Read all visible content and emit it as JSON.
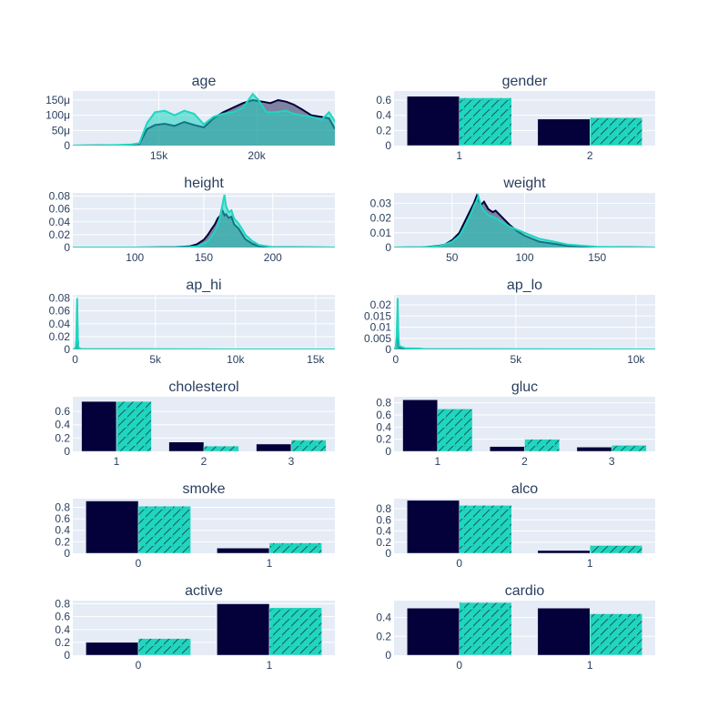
{
  "colors": {
    "plot_bg": "#E5ECF6",
    "grid": "#ffffff",
    "text": "#2a3f5f",
    "series_a": "#03003A",
    "series_b": "#1FD6C0"
  },
  "chart_data": [
    {
      "type": "area",
      "title": "age",
      "xlim": [
        10600,
        24000
      ],
      "ylim": [
        0,
        0.00018
      ],
      "xticks": [
        {
          "v": 15000,
          "label": "15k"
        },
        {
          "v": 20000,
          "label": "20k"
        }
      ],
      "yticks": [
        {
          "v": 0,
          "label": "0"
        },
        {
          "v": 5e-05,
          "label": "50μ"
        },
        {
          "v": 0.0001,
          "label": "100μ"
        },
        {
          "v": 0.00015,
          "label": "150μ"
        }
      ],
      "series": [
        {
          "x": [
            10600,
            12000,
            13000,
            13600,
            14000,
            14400,
            14800,
            15300,
            15800,
            16300,
            16800,
            17300,
            17800,
            18300,
            18800,
            19300,
            19800,
            20300,
            20700,
            21100,
            21500,
            21900,
            22300,
            22800,
            23300,
            23700,
            24000
          ],
          "y": [
            0,
            5e-07,
            1e-06,
            3e-06,
            5e-06,
            5.5e-05,
            6.8e-05,
            7.2e-05,
            6.5e-05,
            7.8e-05,
            6.8e-05,
            6e-05,
            9e-05,
            0.00011,
            0.000125,
            0.00014,
            0.00015,
            0.000145,
            0.00014,
            0.00015,
            0.000145,
            0.000135,
            0.00012,
            0.0001,
            9.5e-05,
            9e-05,
            5.5e-05
          ]
        },
        {
          "x": [
            10600,
            12000,
            13000,
            13600,
            14000,
            14400,
            14800,
            15300,
            15800,
            16300,
            16800,
            17300,
            17800,
            18300,
            18800,
            19300,
            19800,
            20100,
            20500,
            21000,
            21500,
            21900,
            22300,
            22800,
            23300,
            23700,
            24000
          ],
          "y": [
            0,
            1e-06,
            2e-06,
            4e-06,
            8e-06,
            7.5e-05,
            0.00011,
            0.000115,
            0.0001,
            0.000115,
            0.000105,
            7e-05,
            9.5e-05,
            0.000105,
            0.00011,
            0.000125,
            0.00017,
            0.00015,
            0.00011,
            0.00011,
            0.000115,
            0.000105,
            0.0001,
            9.5e-05,
            8.5e-05,
            0.00011,
            8e-05
          ]
        }
      ]
    },
    {
      "type": "bar",
      "title": "gender",
      "categories": [
        "1",
        "2"
      ],
      "ylim": [
        0,
        0.72
      ],
      "yticks": [
        {
          "v": 0,
          "label": "0"
        },
        {
          "v": 0.2,
          "label": "0.2"
        },
        {
          "v": 0.4,
          "label": "0.4"
        },
        {
          "v": 0.6,
          "label": "0.6"
        }
      ],
      "series": [
        {
          "values": [
            0.65,
            0.35
          ]
        },
        {
          "values": [
            0.63,
            0.37
          ]
        }
      ]
    },
    {
      "type": "area",
      "title": "height",
      "xlim": [
        55,
        245
      ],
      "ylim": [
        0,
        0.085
      ],
      "xticks": [
        {
          "v": 100,
          "label": "100"
        },
        {
          "v": 150,
          "label": "150"
        },
        {
          "v": 200,
          "label": "200"
        }
      ],
      "yticks": [
        {
          "v": 0,
          "label": "0"
        },
        {
          "v": 0.02,
          "label": "0.02"
        },
        {
          "v": 0.04,
          "label": "0.04"
        },
        {
          "v": 0.06,
          "label": "0.06"
        },
        {
          "v": 0.08,
          "label": "0.08"
        }
      ],
      "series": [
        {
          "x": [
            55,
            100,
            130,
            140,
            145,
            150,
            153,
            156,
            158,
            160,
            162,
            163,
            164,
            165,
            166,
            168,
            170,
            172,
            175,
            178,
            180,
            185,
            190,
            200,
            245
          ],
          "y": [
            0,
            0,
            0.0005,
            0.002,
            0.005,
            0.012,
            0.02,
            0.03,
            0.036,
            0.045,
            0.05,
            0.06,
            0.055,
            0.05,
            0.052,
            0.046,
            0.048,
            0.036,
            0.03,
            0.02,
            0.013,
            0.006,
            0.002,
            0.0005,
            0
          ]
        },
        {
          "x": [
            55,
            100,
            130,
            140,
            145,
            150,
            153,
            156,
            158,
            160,
            162,
            163,
            164,
            165,
            166,
            168,
            170,
            172,
            175,
            178,
            180,
            185,
            190,
            200,
            245
          ],
          "y": [
            0,
            0,
            0.0002,
            0.001,
            0.002,
            0.006,
            0.01,
            0.018,
            0.025,
            0.035,
            0.05,
            0.06,
            0.072,
            0.082,
            0.065,
            0.055,
            0.058,
            0.045,
            0.038,
            0.028,
            0.02,
            0.01,
            0.004,
            0.0005,
            0
          ]
        }
      ]
    },
    {
      "type": "area",
      "title": "weight",
      "xlim": [
        10,
        190
      ],
      "ylim": [
        0,
        0.037
      ],
      "xticks": [
        {
          "v": 50,
          "label": "50"
        },
        {
          "v": 100,
          "label": "100"
        },
        {
          "v": 150,
          "label": "150"
        }
      ],
      "yticks": [
        {
          "v": 0,
          "label": "0"
        },
        {
          "v": 0.01,
          "label": "0.01"
        },
        {
          "v": 0.02,
          "label": "0.02"
        },
        {
          "v": 0.03,
          "label": "0.03"
        }
      ],
      "series": [
        {
          "x": [
            10,
            30,
            40,
            45,
            50,
            55,
            58,
            60,
            63,
            65,
            67,
            68,
            70,
            72,
            75,
            78,
            80,
            85,
            90,
            95,
            100,
            110,
            120,
            130,
            150,
            170,
            190
          ],
          "y": [
            0,
            0.0002,
            0.001,
            0.002,
            0.005,
            0.01,
            0.016,
            0.02,
            0.026,
            0.03,
            0.035,
            0.032,
            0.029,
            0.031,
            0.026,
            0.024,
            0.025,
            0.02,
            0.015,
            0.011,
            0.008,
            0.004,
            0.0025,
            0.0012,
            0.0003,
            0.0001,
            0
          ]
        },
        {
          "x": [
            10,
            30,
            40,
            45,
            50,
            55,
            58,
            60,
            63,
            65,
            67,
            68,
            70,
            72,
            75,
            78,
            80,
            85,
            90,
            95,
            100,
            110,
            120,
            130,
            150,
            170,
            190
          ],
          "y": [
            0,
            0.0002,
            0.0008,
            0.002,
            0.004,
            0.008,
            0.013,
            0.017,
            0.023,
            0.028,
            0.032,
            0.035,
            0.028,
            0.025,
            0.022,
            0.021,
            0.02,
            0.017,
            0.014,
            0.012,
            0.01,
            0.006,
            0.004,
            0.002,
            0.0005,
            0.0001,
            0
          ]
        }
      ]
    },
    {
      "type": "area",
      "title": "ap_hi",
      "xlim": [
        -150,
        16200
      ],
      "ylim": [
        0,
        0.085
      ],
      "xticks": [
        {
          "v": 0,
          "label": "0"
        },
        {
          "v": 5000,
          "label": "5k"
        },
        {
          "v": 10000,
          "label": "10k"
        },
        {
          "v": 15000,
          "label": "15k"
        }
      ],
      "yticks": [
        {
          "v": 0,
          "label": "0"
        },
        {
          "v": 0.02,
          "label": "0.02"
        },
        {
          "v": 0.04,
          "label": "0.04"
        },
        {
          "v": 0.06,
          "label": "0.06"
        },
        {
          "v": 0.08,
          "label": "0.08"
        }
      ],
      "series": [
        {
          "x": [
            -150,
            0,
            60,
            100,
            120,
            140,
            160,
            200,
            400,
            1000,
            16200
          ],
          "y": [
            0,
            0.0005,
            0.005,
            0.03,
            0.045,
            0.035,
            0.015,
            0.002,
            0.0002,
            0.0001,
            0
          ]
        },
        {
          "x": [
            -150,
            0,
            60,
            100,
            120,
            140,
            160,
            200,
            400,
            1000,
            16200
          ],
          "y": [
            0,
            0.0005,
            0.008,
            0.06,
            0.08,
            0.05,
            0.02,
            0.002,
            0.0002,
            0.0001,
            0
          ]
        }
      ]
    },
    {
      "type": "area",
      "title": "ap_lo",
      "xlim": [
        -70,
        10800
      ],
      "ylim": [
        0,
        0.0245
      ],
      "xticks": [
        {
          "v": 0,
          "label": "0"
        },
        {
          "v": 5000,
          "label": "5k"
        },
        {
          "v": 10000,
          "label": "10k"
        }
      ],
      "yticks": [
        {
          "v": 0,
          "label": "0"
        },
        {
          "v": 0.005,
          "label": "0.005"
        },
        {
          "v": 0.01,
          "label": "0.01"
        },
        {
          "v": 0.015,
          "label": "0.015"
        },
        {
          "v": 0.02,
          "label": "0.02"
        }
      ],
      "series": [
        {
          "x": [
            -70,
            0,
            40,
            70,
            80,
            90,
            110,
            150,
            400,
            1000,
            1200,
            10800
          ],
          "y": [
            0,
            0.0005,
            0.004,
            0.012,
            0.016,
            0.013,
            0.004,
            0.001,
            0.0003,
            0.0002,
            5e-05,
            0
          ]
        },
        {
          "x": [
            -70,
            0,
            40,
            70,
            80,
            90,
            110,
            150,
            400,
            1000,
            1200,
            10800
          ],
          "y": [
            0,
            0.0005,
            0.006,
            0.018,
            0.023,
            0.018,
            0.006,
            0.0015,
            0.0005,
            0.0004,
            0.0001,
            0
          ]
        }
      ]
    },
    {
      "type": "bar",
      "title": "cholesterol",
      "categories": [
        "1",
        "2",
        "3"
      ],
      "ylim": [
        0,
        0.82
      ],
      "yticks": [
        {
          "v": 0,
          "label": "0"
        },
        {
          "v": 0.2,
          "label": "0.2"
        },
        {
          "v": 0.4,
          "label": "0.4"
        },
        {
          "v": 0.6,
          "label": "0.6"
        }
      ],
      "series": [
        {
          "values": [
            0.75,
            0.14,
            0.11
          ]
        },
        {
          "values": [
            0.75,
            0.08,
            0.17
          ]
        }
      ]
    },
    {
      "type": "bar",
      "title": "gluc",
      "categories": [
        "1",
        "2",
        "3"
      ],
      "ylim": [
        0,
        0.9
      ],
      "yticks": [
        {
          "v": 0,
          "label": "0"
        },
        {
          "v": 0.2,
          "label": "0.2"
        },
        {
          "v": 0.4,
          "label": "0.4"
        },
        {
          "v": 0.6,
          "label": "0.6"
        },
        {
          "v": 0.8,
          "label": "0.8"
        }
      ],
      "series": [
        {
          "values": [
            0.85,
            0.08,
            0.07
          ]
        },
        {
          "values": [
            0.7,
            0.2,
            0.1
          ]
        }
      ]
    },
    {
      "type": "bar",
      "title": "smoke",
      "categories": [
        "0",
        "1"
      ],
      "ylim": [
        0,
        0.95
      ],
      "yticks": [
        {
          "v": 0,
          "label": "0"
        },
        {
          "v": 0.2,
          "label": "0.2"
        },
        {
          "v": 0.4,
          "label": "0.4"
        },
        {
          "v": 0.6,
          "label": "0.6"
        },
        {
          "v": 0.8,
          "label": "0.8"
        }
      ],
      "series": [
        {
          "values": [
            0.91,
            0.09
          ]
        },
        {
          "values": [
            0.82,
            0.18
          ]
        }
      ]
    },
    {
      "type": "bar",
      "title": "alco",
      "categories": [
        "0",
        "1"
      ],
      "ylim": [
        0,
        0.98
      ],
      "yticks": [
        {
          "v": 0,
          "label": "0"
        },
        {
          "v": 0.2,
          "label": "0.2"
        },
        {
          "v": 0.4,
          "label": "0.4"
        },
        {
          "v": 0.6,
          "label": "0.6"
        },
        {
          "v": 0.8,
          "label": "0.8"
        }
      ],
      "series": [
        {
          "values": [
            0.95,
            0.05
          ]
        },
        {
          "values": [
            0.86,
            0.14
          ]
        }
      ]
    },
    {
      "type": "bar",
      "title": "active",
      "categories": [
        "0",
        "1"
      ],
      "ylim": [
        0,
        0.85
      ],
      "yticks": [
        {
          "v": 0,
          "label": "0"
        },
        {
          "v": 0.2,
          "label": "0.2"
        },
        {
          "v": 0.4,
          "label": "0.4"
        },
        {
          "v": 0.6,
          "label": "0.6"
        },
        {
          "v": 0.8,
          "label": "0.8"
        }
      ],
      "series": [
        {
          "values": [
            0.2,
            0.8
          ]
        },
        {
          "values": [
            0.26,
            0.74
          ]
        }
      ]
    },
    {
      "type": "bar",
      "title": "cardio",
      "categories": [
        "0",
        "1"
      ],
      "ylim": [
        0,
        0.58
      ],
      "yticks": [
        {
          "v": 0,
          "label": "0"
        },
        {
          "v": 0.2,
          "label": "0.2"
        },
        {
          "v": 0.4,
          "label": "0.4"
        }
      ],
      "series": [
        {
          "values": [
            0.5,
            0.5
          ]
        },
        {
          "values": [
            0.56,
            0.44
          ]
        }
      ]
    }
  ]
}
